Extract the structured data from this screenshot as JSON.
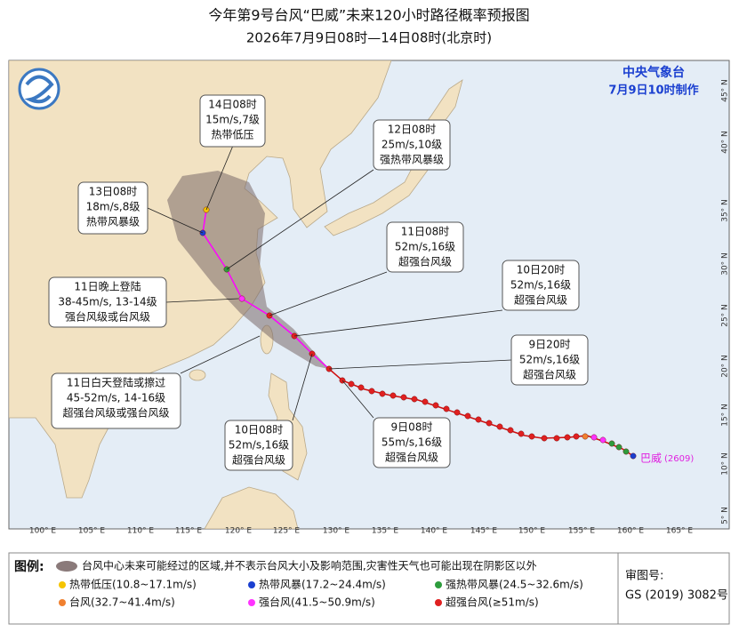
{
  "header": {
    "title": "今年第9号台风“巴威”未来120小时路径概率预报图",
    "subtitle": "2026年7月9日08时—14日08时(北京时)"
  },
  "agency": {
    "name": "中央气象台",
    "issued": "7月9日10时制作"
  },
  "callouts": [
    {
      "time": "14日08时",
      "wind": "15m/s,7级",
      "level": "热带低压"
    },
    {
      "time": "13日08时",
      "wind": "18m/s,8级",
      "level": "热带风暴级"
    },
    {
      "time": "12日08时",
      "wind": "25m/s,10级",
      "level": "强热带风暴级"
    },
    {
      "time": "11日08时",
      "wind": "52m/s,16级",
      "level": "超强台风级"
    },
    {
      "time": "10日20时",
      "wind": "52m/s,16级",
      "level": "超强台风级"
    },
    {
      "time": "11日晚上登陆",
      "wind": "38-45m/s,  13-14级",
      "level": "强台风级或台风级"
    },
    {
      "time": "9日20时",
      "wind": "52m/s,16级",
      "level": "超强台风级"
    },
    {
      "time": "11日白天登陆或擦过",
      "wind": "45-52m/s,  14-16级",
      "level": "超强台风级或强台风级"
    },
    {
      "time": "10日08时",
      "wind": "52m/s,16级",
      "level": "超强台风级"
    },
    {
      "time": "9日08时",
      "wind": "55m/s,16级",
      "level": "超强台风级"
    }
  ],
  "typhoon": {
    "name": "巴威",
    "code": "(2609)"
  },
  "axes": {
    "longitude": [
      "100° E",
      "105° E",
      "110° E",
      "115° E",
      "120° E",
      "125° E",
      "130° E",
      "135° E",
      "140° E",
      "145° E",
      "150° E",
      "155° E",
      "160° E",
      "165° E"
    ],
    "latitude": [
      "45° N",
      "40° N",
      "35° N",
      "30° N",
      "25° N",
      "20° N",
      "15° N",
      "10° N",
      "5° N"
    ]
  },
  "legend": {
    "title": "图例:",
    "cone": "台风中心未来可能经过的区域,并不表示台风大小及影响范围,灾害性天气也可能出现在阴影区以外",
    "items": [
      {
        "label": "热带低压(10.8~17.1m/s)",
        "color": "#f5c400"
      },
      {
        "label": "热带风暴(17.2~24.4m/s)",
        "color": "#1a3fd0"
      },
      {
        "label": "强热带风暴(24.5~32.6m/s)",
        "color": "#2d9c3c"
      },
      {
        "label": "台风(32.7~41.4m/s)",
        "color": "#f08030"
      },
      {
        "label": "强台风(41.5~50.9m/s)",
        "color": "#ff33ff"
      },
      {
        "label": "超强台风(≥51m/s)",
        "color": "#e02020"
      }
    ]
  },
  "footer": {
    "label": "审图号:",
    "number": "GS (2019) 3082号"
  }
}
